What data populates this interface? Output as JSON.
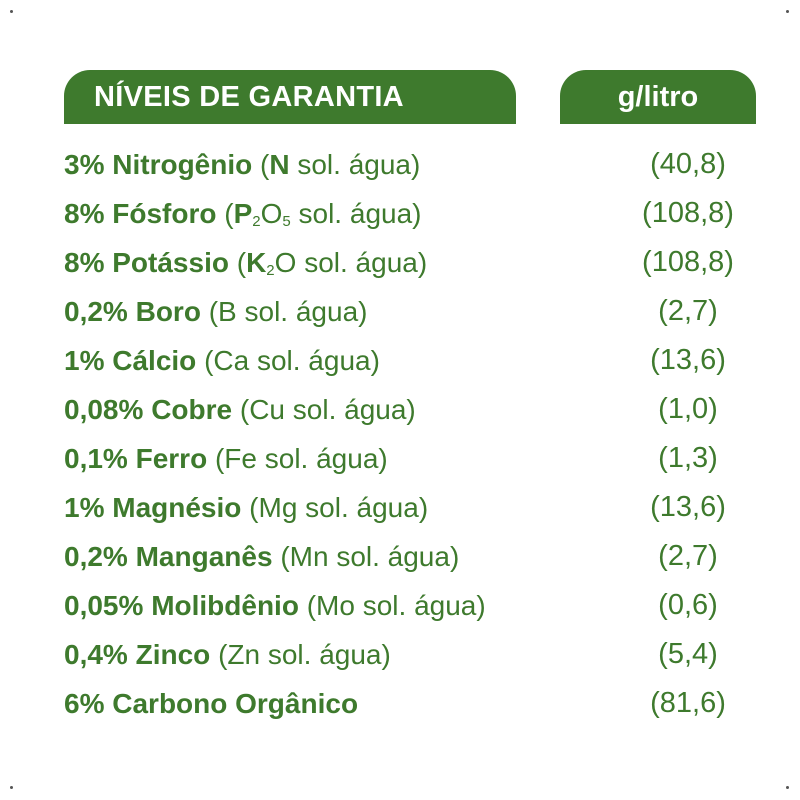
{
  "header": {
    "title": "NÍVEIS DE GARANTIA",
    "unit": "g/litro"
  },
  "rows": [
    {
      "pct": "3%",
      "name": "Nitrogênio",
      "open": "(",
      "element": "N",
      "rest": " sol. água)",
      "value": "(40,8)"
    },
    {
      "pct": "8%",
      "name": "Fósforo",
      "open": "(",
      "element": "P",
      "sub1": "2",
      "mid": "O",
      "sub2": "5",
      "rest": " sol. água)",
      "value": "(108,8)"
    },
    {
      "pct": "8%",
      "name": "Potássio",
      "open": "(",
      "element": "K",
      "sub1": "2",
      "mid": "O",
      "rest": " sol. água)",
      "value": "(108,8)"
    },
    {
      "pct": "0,2%",
      "name": "Boro",
      "detail": "(B sol. água)",
      "value": "(2,7)"
    },
    {
      "pct": "1%",
      "name": "Cálcio",
      "detail": "(Ca sol. água)",
      "value": "(13,6)"
    },
    {
      "pct": "0,08%",
      "name": "Cobre",
      "detail": "(Cu sol. água)",
      "value": "(1,0)"
    },
    {
      "pct": "0,1%",
      "name": "Ferro",
      "detail": "(Fe sol. água)",
      "value": "(1,3)"
    },
    {
      "pct": "1%",
      "name": "Magnésio",
      "detail": "(Mg sol. água)",
      "value": "(13,6)"
    },
    {
      "pct": "0,2%",
      "name": "Manganês",
      "detail": "(Mn sol. água)",
      "value": "(2,7)"
    },
    {
      "pct": "0,05%",
      "name": "Molibdênio",
      "detail": "(Mo sol. água)",
      "value": "(0,6)"
    },
    {
      "pct": "0,4%",
      "name": "Zinco",
      "detail": "(Zn sol. água)",
      "value": "(5,4)"
    },
    {
      "pct": "6%",
      "name": "Carbono Orgânico",
      "detail": "",
      "value": "(81,6)"
    }
  ]
}
